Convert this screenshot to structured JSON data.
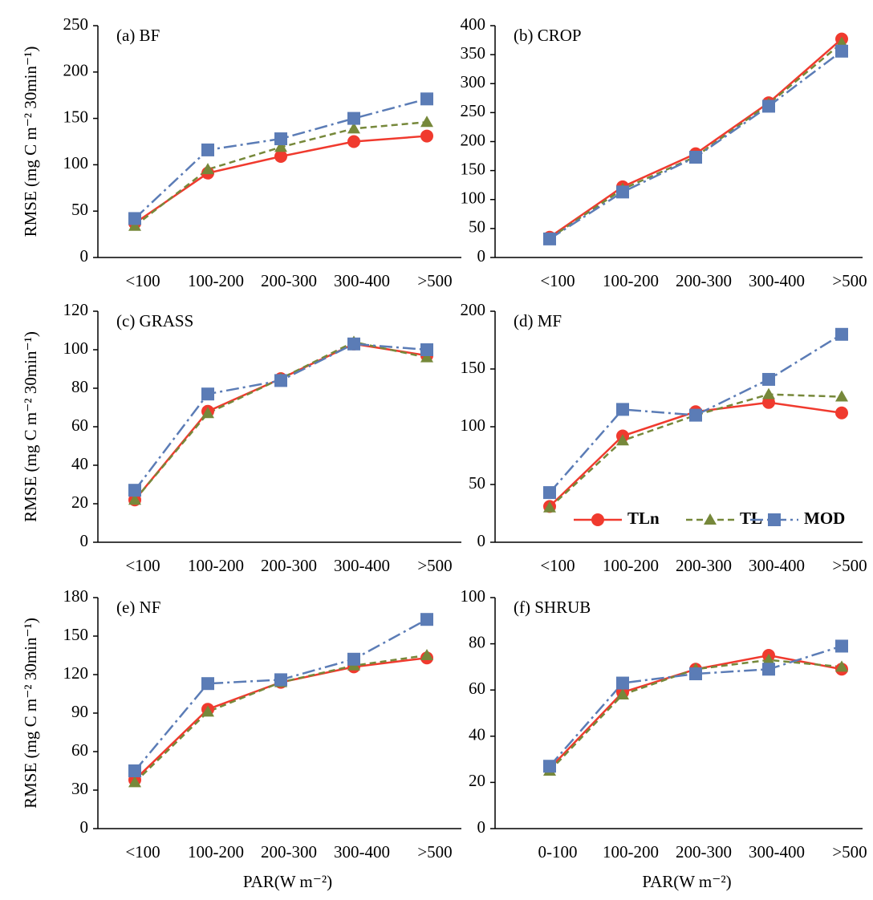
{
  "chart_data": [
    {
      "type": "line",
      "title": "(a) BF",
      "y_label": "RMSE (mg C m⁻² 30min⁻¹)",
      "categories": [
        "<100",
        "100-200",
        "200-300",
        "300-400",
        ">500"
      ],
      "ylim": [
        0,
        250
      ],
      "yticks": [
        0,
        50,
        100,
        150,
        200,
        250
      ],
      "series": [
        {
          "name": "TLn",
          "color": "#f03a2e",
          "marker": "circle",
          "line_style": "solid",
          "values": [
            37,
            91,
            109,
            125,
            131
          ]
        },
        {
          "name": "TL",
          "color": "#76883a",
          "marker": "triangle",
          "line_style": "dashed",
          "values": [
            34,
            95,
            119,
            139,
            146
          ]
        },
        {
          "name": "MOD",
          "color": "#5b7cb6",
          "marker": "square",
          "line_style": "dashdot",
          "values": [
            42,
            116,
            128,
            150,
            171
          ]
        }
      ]
    },
    {
      "type": "line",
      "title": "(b) CROP",
      "categories": [
        "<100",
        "100-200",
        "200-300",
        "300-400",
        ">500"
      ],
      "ylim": [
        0,
        400
      ],
      "yticks": [
        0,
        50,
        100,
        150,
        200,
        250,
        300,
        350,
        400
      ],
      "series": [
        {
          "name": "TLn",
          "color": "#f03a2e",
          "marker": "circle",
          "line_style": "solid",
          "values": [
            35,
            122,
            179,
            267,
            377
          ]
        },
        {
          "name": "TL",
          "color": "#76883a",
          "marker": "triangle",
          "line_style": "dashed",
          "values": [
            33,
            118,
            174,
            265,
            370
          ]
        },
        {
          "name": "MOD",
          "color": "#5b7cb6",
          "marker": "square",
          "line_style": "dashdot",
          "values": [
            32,
            113,
            173,
            261,
            356
          ]
        }
      ]
    },
    {
      "type": "line",
      "title": "(c) GRASS",
      "y_label": "RMSE (mg C m⁻² 30min⁻¹)",
      "categories": [
        "<100",
        "100-200",
        "200-300",
        "300-400",
        ">500"
      ],
      "ylim": [
        0,
        120
      ],
      "yticks": [
        0,
        20,
        40,
        60,
        80,
        100,
        120
      ],
      "series": [
        {
          "name": "TLn",
          "color": "#f03a2e",
          "marker": "circle",
          "line_style": "solid",
          "values": [
            22,
            68,
            85,
            103,
            97
          ]
        },
        {
          "name": "TL",
          "color": "#76883a",
          "marker": "triangle",
          "line_style": "dashed",
          "values": [
            22,
            67,
            85,
            104,
            96
          ]
        },
        {
          "name": "MOD",
          "color": "#5b7cb6",
          "marker": "square",
          "line_style": "dashdot",
          "values": [
            27,
            77,
            84,
            103,
            100
          ]
        }
      ]
    },
    {
      "type": "line",
      "title": "(d) MF",
      "legend": "lower right",
      "categories": [
        "<100",
        "100-200",
        "200-300",
        "300-400",
        ">500"
      ],
      "ylim": [
        0,
        200
      ],
      "yticks": [
        0,
        50,
        100,
        150,
        200
      ],
      "series": [
        {
          "name": "TLn",
          "color": "#f03a2e",
          "marker": "circle",
          "line_style": "solid",
          "values": [
            31,
            92,
            113,
            121,
            112
          ]
        },
        {
          "name": "TL",
          "color": "#76883a",
          "marker": "triangle",
          "line_style": "dashed",
          "values": [
            30,
            88,
            110,
            128,
            126
          ]
        },
        {
          "name": "MOD",
          "color": "#5b7cb6",
          "marker": "square",
          "line_style": "dashdot",
          "values": [
            43,
            115,
            110,
            141,
            180
          ]
        }
      ]
    },
    {
      "type": "line",
      "title": "(e) NF",
      "y_label": "RMSE (mg C m⁻² 30min⁻¹)",
      "x_label": "PAR(W m⁻²)",
      "categories": [
        "<100",
        "100-200",
        "200-300",
        "300-400",
        ">500"
      ],
      "ylim": [
        0,
        180
      ],
      "yticks": [
        0,
        30,
        60,
        90,
        120,
        150,
        180
      ],
      "series": [
        {
          "name": "TLn",
          "color": "#f03a2e",
          "marker": "circle",
          "line_style": "solid",
          "values": [
            38,
            93,
            114,
            126,
            133
          ]
        },
        {
          "name": "TL",
          "color": "#76883a",
          "marker": "triangle",
          "line_style": "dashed",
          "values": [
            36,
            91,
            114,
            127,
            135
          ]
        },
        {
          "name": "MOD",
          "color": "#5b7cb6",
          "marker": "square",
          "line_style": "dashdot",
          "values": [
            45,
            113,
            116,
            132,
            163
          ]
        }
      ]
    },
    {
      "type": "line",
      "title": "(f) SHRUB",
      "x_label": "PAR(W m⁻²)",
      "categories": [
        "0-100",
        "100-200",
        "200-300",
        "300-400",
        ">500"
      ],
      "ylim": [
        0,
        100
      ],
      "yticks": [
        0,
        20,
        40,
        60,
        80,
        100
      ],
      "series": [
        {
          "name": "TLn",
          "color": "#f03a2e",
          "marker": "circle",
          "line_style": "solid",
          "values": [
            26,
            59,
            69,
            75,
            69
          ]
        },
        {
          "name": "TL",
          "color": "#76883a",
          "marker": "triangle",
          "line_style": "dashed",
          "values": [
            25,
            58,
            69,
            73,
            70
          ]
        },
        {
          "name": "MOD",
          "color": "#5b7cb6",
          "marker": "square",
          "line_style": "dashdot",
          "values": [
            27,
            63,
            67,
            69,
            79
          ]
        }
      ]
    }
  ]
}
